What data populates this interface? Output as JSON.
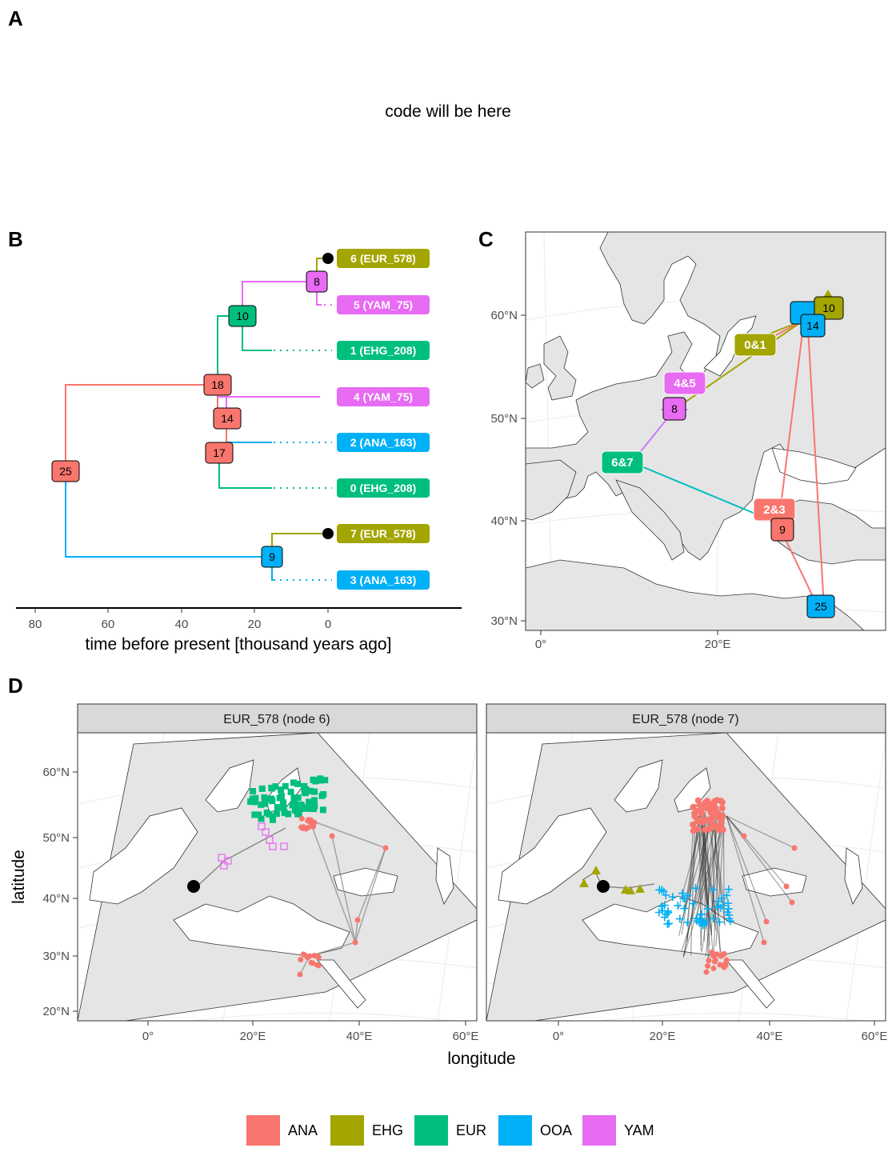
{
  "colors": {
    "ANA": "#F8766D",
    "EHG": "#A3A500",
    "EUR": "#00BF7D",
    "OOA": "#00B0F6",
    "YAM": "#E76BF3",
    "land": "#e5e5e5",
    "sea": "#ffffff",
    "strip": "#d9d9d9"
  },
  "panels": {
    "A": {
      "letter": "A",
      "placeholder": "code will be here"
    },
    "B": {
      "letter": "B",
      "xlabel": "time before present [thousand years ago]",
      "xticks": [
        "80",
        "60",
        "40",
        "20",
        "0"
      ]
    },
    "C": {
      "letter": "C",
      "yticks": [
        "60°N",
        "50°N",
        "40°N",
        "30°N"
      ],
      "xticks": [
        "0°",
        "20°E"
      ]
    },
    "D": {
      "letter": "D",
      "ylabel": "latitude",
      "xlabel": "longitude",
      "facets": [
        "EUR_578 (node 6)",
        "EUR_578 (node 7)"
      ],
      "yticks": [
        "60°N",
        "50°N",
        "40°N",
        "30°N",
        "20°N"
      ],
      "xticks": [
        "0°",
        "20°E",
        "40°E",
        "60°E"
      ]
    }
  },
  "tree": {
    "tips": [
      {
        "label": "6 (EUR_578)",
        "pop": "EHG"
      },
      {
        "label": "5 (YAM_75)",
        "pop": "YAM"
      },
      {
        "label": "1 (EHG_208)",
        "pop": "EUR"
      },
      {
        "label": "4 (YAM_75)",
        "pop": "YAM"
      },
      {
        "label": "2 (ANA_163)",
        "pop": "OOA"
      },
      {
        "label": "0 (EHG_208)",
        "pop": "EUR"
      },
      {
        "label": "7 (EUR_578)",
        "pop": "EHG"
      },
      {
        "label": "3 (ANA_163)",
        "pop": "OOA"
      }
    ],
    "nodes": [
      {
        "label": "8",
        "pop": "YAM"
      },
      {
        "label": "10",
        "pop": "EUR"
      },
      {
        "label": "18",
        "pop": "ANA"
      },
      {
        "label": "14",
        "pop": "ANA"
      },
      {
        "label": "17",
        "pop": "ANA"
      },
      {
        "label": "25",
        "pop": "ANA"
      },
      {
        "label": "9",
        "pop": "OOA"
      }
    ]
  },
  "map_c": {
    "pair_labels": [
      {
        "label": "0&1",
        "pop": "EHG"
      },
      {
        "label": "4&5",
        "pop": "YAM"
      },
      {
        "label": "6&7",
        "pop": "EUR"
      },
      {
        "label": "2&3",
        "pop": "ANA"
      }
    ],
    "node_labels": [
      {
        "label": "10",
        "pop": "EHG"
      },
      {
        "label": "14",
        "pop": "OOA"
      },
      {
        "label": "8",
        "pop": "YAM"
      },
      {
        "label": "9",
        "pop": "ANA"
      },
      {
        "label": "25",
        "pop": "OOA"
      }
    ]
  },
  "legend": [
    "ANA",
    "EHG",
    "EUR",
    "OOA",
    "YAM"
  ]
}
